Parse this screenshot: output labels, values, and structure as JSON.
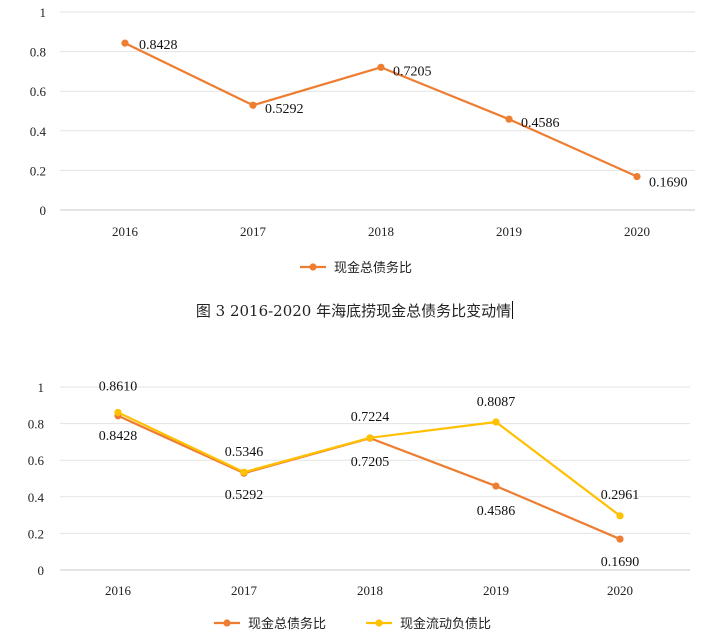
{
  "charts": [
    {
      "type": "line",
      "categories": [
        "2016",
        "2017",
        "2018",
        "2019",
        "2020"
      ],
      "yticks": [
        "0",
        "0.2",
        "0.4",
        "0.6",
        "0.8",
        "1"
      ],
      "ylim": [
        0,
        1
      ],
      "legend_position": "bottom",
      "series": [
        {
          "name": "现金总债务比",
          "color": "#ED7D31",
          "values": [
            0.8428,
            0.5292,
            0.7205,
            0.4586,
            0.169
          ],
          "labels": [
            "0.8428",
            "0.5292",
            "0.7205",
            "0.4586",
            "0.1690"
          ]
        }
      ]
    },
    {
      "type": "line",
      "categories": [
        "2016",
        "2017",
        "2018",
        "2019",
        "2020"
      ],
      "yticks": [
        "0",
        "0.2",
        "0.4",
        "0.6",
        "0.8",
        "1"
      ],
      "ylim": [
        0,
        1
      ],
      "legend_position": "bottom",
      "series": [
        {
          "name": "现金总债务比",
          "color": "#ED7D31",
          "values": [
            0.8428,
            0.5292,
            0.7205,
            0.4586,
            0.169
          ],
          "labels": [
            "0.8428",
            "0.5292",
            "0.7205",
            "0.4586",
            "0.1690"
          ]
        },
        {
          "name": "现金流动负债比",
          "color": "#FFC000",
          "values": [
            0.861,
            0.5346,
            0.7224,
            0.8087,
            0.2961
          ],
          "labels": [
            "0.8610",
            "0.5346",
            "0.7224",
            "0.8087",
            "0.2961"
          ]
        }
      ]
    }
  ],
  "caption": "图 3 2016-2020 年海底捞现金总债务比变动情"
}
